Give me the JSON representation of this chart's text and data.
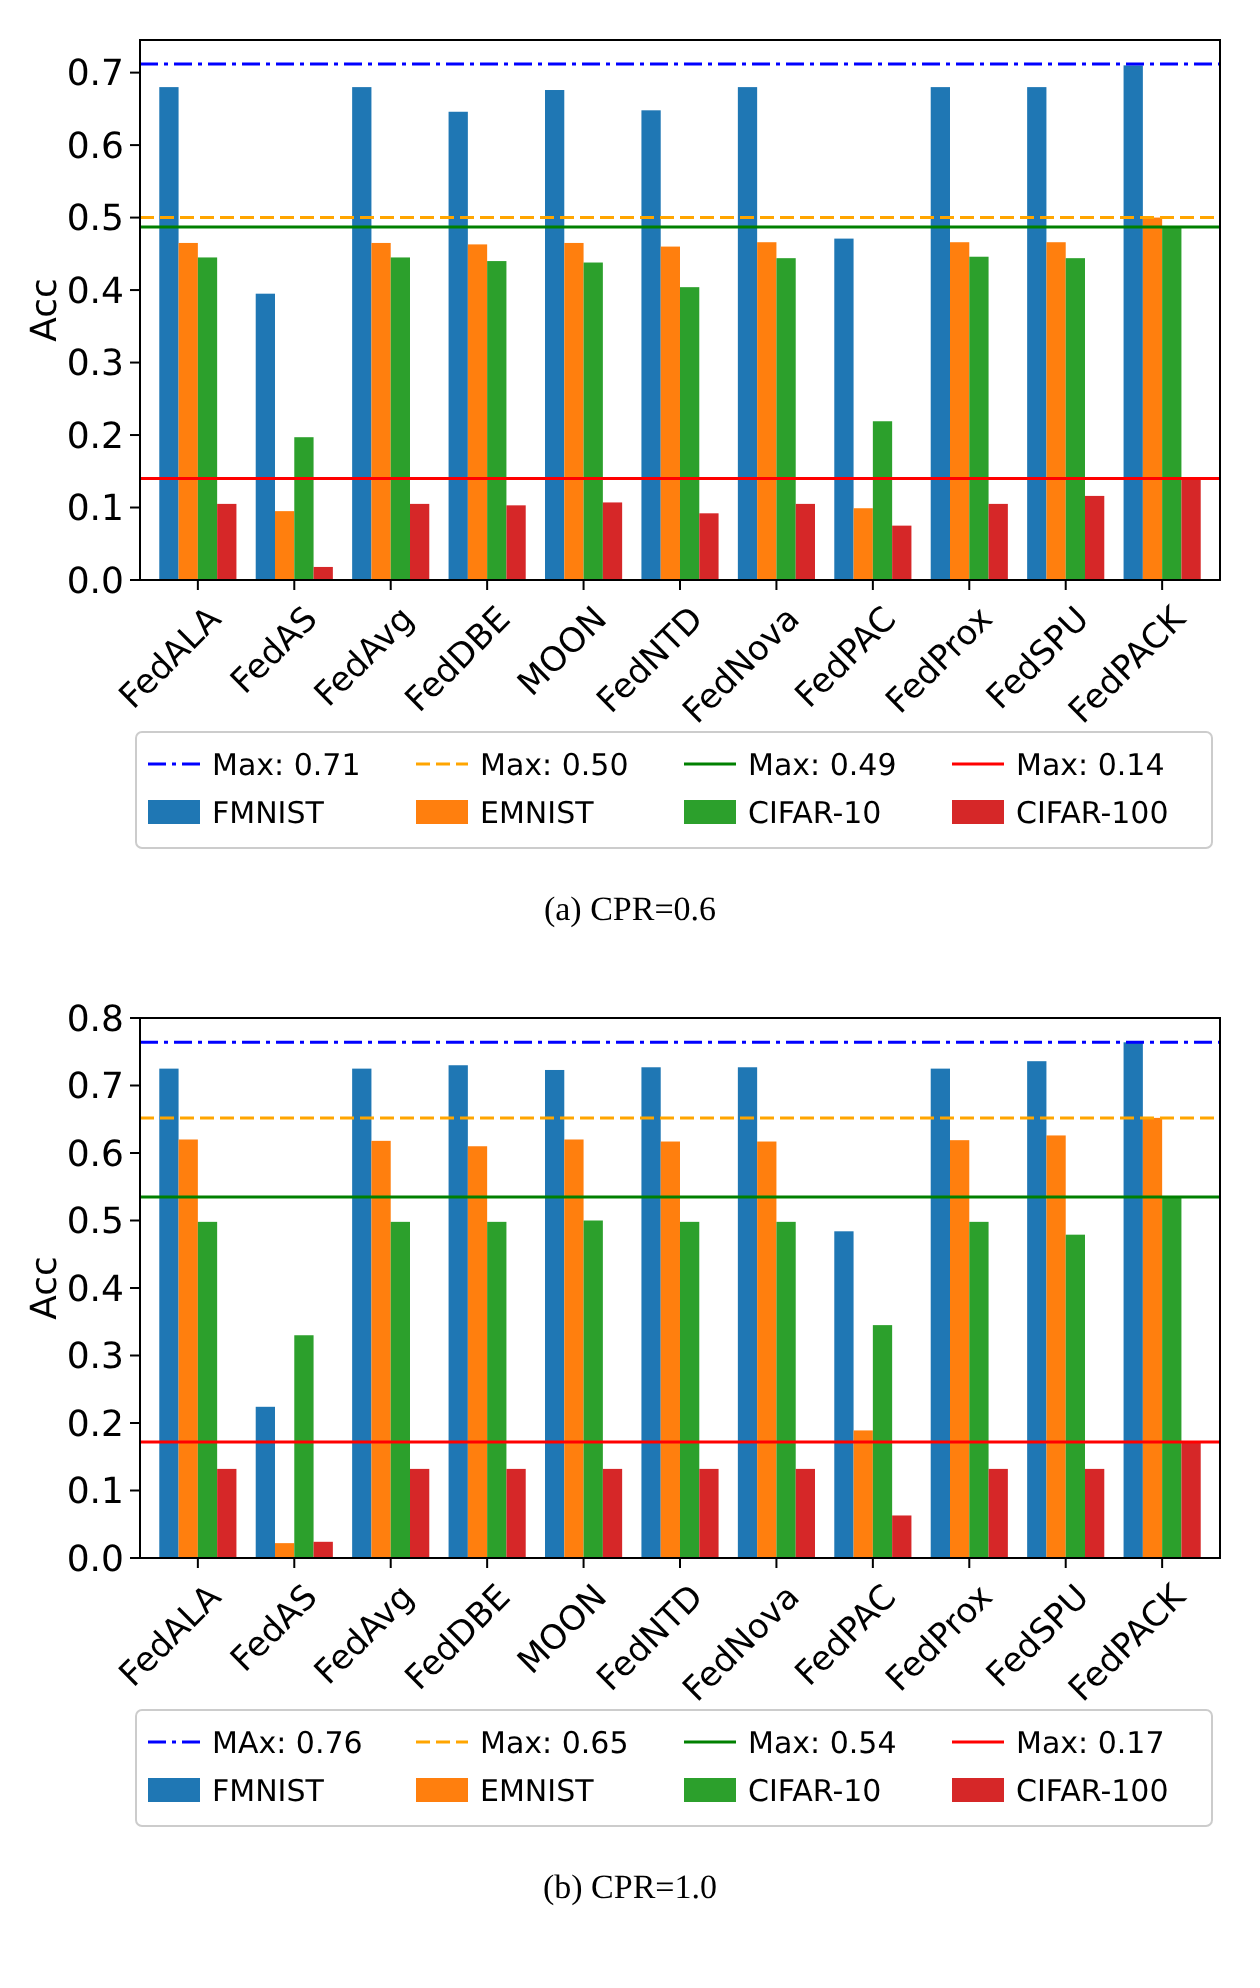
{
  "chart_data": [
    {
      "type": "bar",
      "title": "(a) CPR=0.6",
      "ylabel": "Acc",
      "categories": [
        "FedALA",
        "FedAS",
        "FedAvg",
        "FedDBE",
        "MOON",
        "FedNTD",
        "FedNova",
        "FedPAC",
        "FedProx",
        "FedSPU",
        "FedPACK"
      ],
      "series": [
        {
          "name": "FMNIST",
          "color": "#1f77b4",
          "values": [
            0.68,
            0.395,
            0.68,
            0.646,
            0.676,
            0.648,
            0.68,
            0.471,
            0.68,
            0.68,
            0.71
          ]
        },
        {
          "name": "EMNIST",
          "color": "#ff7f0e",
          "values": [
            0.465,
            0.095,
            0.465,
            0.463,
            0.465,
            0.46,
            0.466,
            0.099,
            0.466,
            0.466,
            0.5
          ]
        },
        {
          "name": "CIFAR-10",
          "color": "#2ca02c",
          "values": [
            0.445,
            0.197,
            0.445,
            0.44,
            0.438,
            0.404,
            0.444,
            0.219,
            0.446,
            0.444,
            0.487
          ]
        },
        {
          "name": "CIFAR-100",
          "color": "#d62728",
          "values": [
            0.105,
            0.018,
            0.105,
            0.103,
            0.107,
            0.092,
            0.105,
            0.075,
            0.105,
            0.116,
            0.14
          ]
        }
      ],
      "ref_lines": [
        {
          "axis": "y",
          "value": 0.712,
          "label": "Max: 0.71",
          "color": "#0000ff",
          "line_style": "dashdot"
        },
        {
          "axis": "y",
          "value": 0.5,
          "label": "Max: 0.50",
          "color": "#ffa500",
          "line_style": "dashed"
        },
        {
          "axis": "y",
          "value": 0.487,
          "label": "Max: 0.49",
          "color": "#008000",
          "line_style": "solid"
        },
        {
          "axis": "y",
          "value": 0.14,
          "label": "Max: 0.14",
          "color": "#ff0000",
          "line_style": "solid"
        }
      ],
      "ylim": [
        0,
        0.745
      ],
      "yticks": [
        {
          "value": 0,
          "label": "0.0"
        },
        0.1,
        0.2,
        0.3,
        0.4,
        0.5,
        0.6,
        0.7
      ],
      "grid": false,
      "legend": "bottom"
    },
    {
      "type": "bar",
      "title": "(b) CPR=1.0",
      "ylabel": "Acc",
      "categories": [
        "FedALA",
        "FedAS",
        "FedAvg",
        "FedDBE",
        "MOON",
        "FedNTD",
        "FedNova",
        "FedPAC",
        "FedProx",
        "FedSPU",
        "FedPACK"
      ],
      "series": [
        {
          "name": "FMNIST",
          "color": "#1f77b4",
          "values": [
            0.725,
            0.224,
            0.725,
            0.73,
            0.723,
            0.727,
            0.727,
            0.484,
            0.725,
            0.736,
            0.764
          ]
        },
        {
          "name": "EMNIST",
          "color": "#ff7f0e",
          "values": [
            0.62,
            0.022,
            0.618,
            0.61,
            0.62,
            0.617,
            0.617,
            0.189,
            0.619,
            0.626,
            0.652
          ]
        },
        {
          "name": "CIFAR-10",
          "color": "#2ca02c",
          "values": [
            0.498,
            0.33,
            0.498,
            0.498,
            0.5,
            0.498,
            0.498,
            0.345,
            0.498,
            0.479,
            0.535
          ]
        },
        {
          "name": "CIFAR-100",
          "color": "#d62728",
          "values": [
            0.132,
            0.024,
            0.132,
            0.132,
            0.132,
            0.132,
            0.132,
            0.063,
            0.132,
            0.132,
            0.172
          ]
        }
      ],
      "ref_lines": [
        {
          "axis": "y",
          "value": 0.764,
          "label": "MAx: 0.76",
          "color": "#0000ff",
          "line_style": "dashdot"
        },
        {
          "axis": "y",
          "value": 0.652,
          "label": "Max: 0.65",
          "color": "#ffa500",
          "line_style": "dashed"
        },
        {
          "axis": "y",
          "value": 0.535,
          "label": "Max: 0.54",
          "color": "#008000",
          "line_style": "solid"
        },
        {
          "axis": "y",
          "value": 0.172,
          "label": "Max: 0.17",
          "color": "#ff0000",
          "line_style": "solid"
        }
      ],
      "ylim": [
        0,
        0.8
      ],
      "yticks": [
        {
          "value": 0,
          "label": "0.0"
        },
        0.1,
        0.2,
        0.3,
        0.4,
        0.5,
        0.6,
        0.7,
        0.8
      ],
      "grid": false,
      "legend": "bottom"
    }
  ]
}
